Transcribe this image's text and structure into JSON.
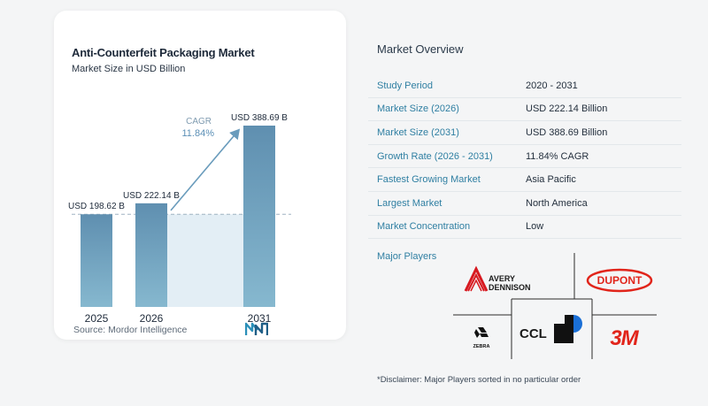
{
  "chart_data": {
    "type": "bar",
    "title": "Anti-Counterfeit Packaging Market",
    "subtitle": "Market Size in USD Billion",
    "categories": [
      "2025",
      "2026",
      "2031"
    ],
    "values": [
      198.62,
      222.14,
      388.69
    ],
    "value_labels": [
      "USD 198.62 B",
      "USD 222.14 B",
      "USD 388.69 B"
    ],
    "cagr_label": "CAGR",
    "cagr_value": "11.84%",
    "ylim": [
      0,
      400
    ],
    "grid": false,
    "colors": {
      "bar_top": "#5f8fb0",
      "bar_bottom": "#86b8cf",
      "shade": "#e3eef5",
      "arrow": "#6a9cbc",
      "dash": "#9fb4c2"
    }
  },
  "source": "Source:  Mordor Intelligence",
  "source_logo_icon": "mordor-intelligence-logo-icon",
  "overview": {
    "title": "Market Overview",
    "rows": [
      {
        "label": "Study Period",
        "value": "2020 - 2031"
      },
      {
        "label": "Market Size (2026)",
        "value": "USD 222.14 Billion"
      },
      {
        "label": "Market Size (2031)",
        "value": "USD 388.69 Billion"
      },
      {
        "label": "Growth Rate (2026 - 2031)",
        "value": "11.84% CAGR"
      },
      {
        "label": "Fastest Growing Market",
        "value": "Asia Pacific"
      },
      {
        "label": "Largest Market",
        "value": "North America"
      },
      {
        "label": "Market Concentration",
        "value": "Low"
      }
    ]
  },
  "players": {
    "title": "Major Players",
    "logos": {
      "avery_line1": "AVERY",
      "avery_line2": "DENNISON",
      "dupont": "DUPONT",
      "zebra": "ZEBRA",
      "ccl": "CCL",
      "three_m": "3M"
    }
  },
  "disclaimer": "*Disclaimer: Major Players sorted in no particular order"
}
